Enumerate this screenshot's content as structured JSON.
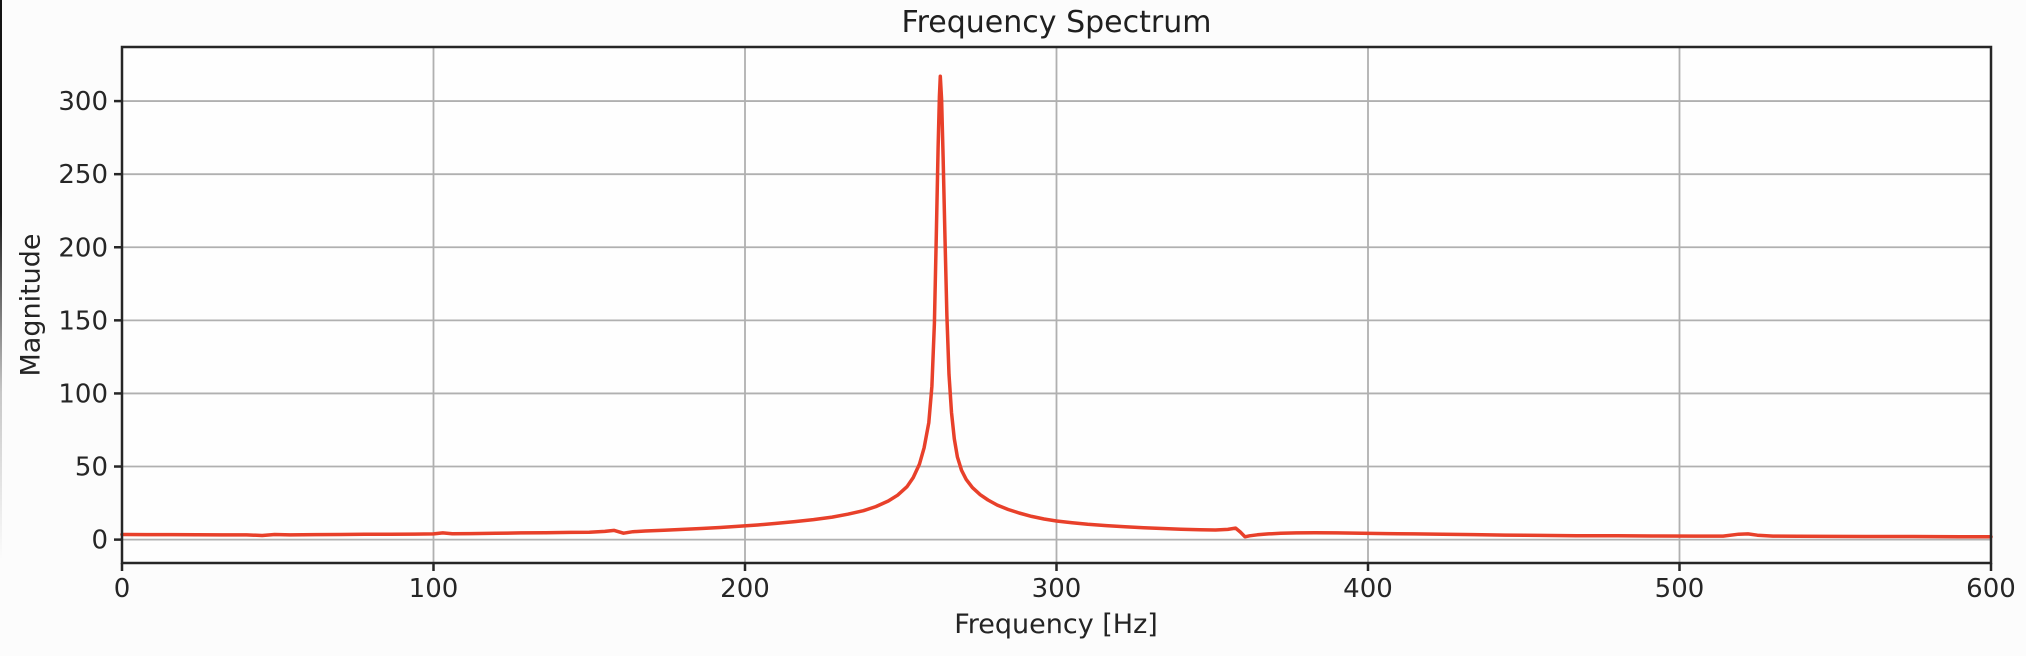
{
  "chart_data": {
    "type": "line",
    "title": "Frequency Spectrum",
    "xlabel": "Frequency [Hz]",
    "ylabel": "Magnitude",
    "xlim": [
      0,
      600
    ],
    "ylim": [
      -16,
      337
    ],
    "x_ticks": [
      0,
      100,
      200,
      300,
      400,
      500,
      600
    ],
    "y_ticks": [
      0,
      50,
      100,
      150,
      200,
      250,
      300
    ],
    "grid": true,
    "legend": false,
    "peak": {
      "frequency_hz": 262.5,
      "magnitude": 317
    },
    "colors": {
      "line": "#e8402a",
      "grid": "#b0b0b0",
      "spine": "#262626",
      "text": "#262626",
      "axes_bg": "#fefefe"
    },
    "series": [
      {
        "name": "magnitude-spectrum",
        "points": [
          [
            0,
            3.5
          ],
          [
            8,
            3.4
          ],
          [
            16,
            3.4
          ],
          [
            24,
            3.3
          ],
          [
            32,
            3.2
          ],
          [
            40,
            3.2
          ],
          [
            45,
            2.8
          ],
          [
            49,
            3.5
          ],
          [
            54,
            3.2
          ],
          [
            62,
            3.4
          ],
          [
            70,
            3.5
          ],
          [
            78,
            3.6
          ],
          [
            86,
            3.7
          ],
          [
            94,
            3.8
          ],
          [
            100,
            3.9
          ],
          [
            103,
            4.6
          ],
          [
            106,
            4.0
          ],
          [
            112,
            4.1
          ],
          [
            120,
            4.3
          ],
          [
            128,
            4.6
          ],
          [
            136,
            4.7
          ],
          [
            144,
            4.9
          ],
          [
            150,
            5.1
          ],
          [
            155,
            5.6
          ],
          [
            158,
            6.3
          ],
          [
            161,
            4.4
          ],
          [
            164,
            5.4
          ],
          [
            168,
            5.9
          ],
          [
            174,
            6.4
          ],
          [
            180,
            7.0
          ],
          [
            186,
            7.6
          ],
          [
            192,
            8.3
          ],
          [
            198,
            9.1
          ],
          [
            204,
            10.0
          ],
          [
            210,
            11.1
          ],
          [
            216,
            12.3
          ],
          [
            222,
            13.7
          ],
          [
            228,
            15.4
          ],
          [
            233,
            17.4
          ],
          [
            238,
            19.8
          ],
          [
            242,
            22.6
          ],
          [
            246,
            26.4
          ],
          [
            249,
            30.4
          ],
          [
            252,
            36.2
          ],
          [
            254,
            42.4
          ],
          [
            256,
            51.5
          ],
          [
            257.5,
            62.8
          ],
          [
            259,
            80
          ],
          [
            260,
            105
          ],
          [
            260.8,
            148
          ],
          [
            261.4,
            208
          ],
          [
            262,
            268
          ],
          [
            262.4,
            303
          ],
          [
            262.7,
            317
          ],
          [
            263.1,
            301
          ],
          [
            263.6,
            262
          ],
          [
            264.2,
            206
          ],
          [
            264.8,
            153
          ],
          [
            265.5,
            113
          ],
          [
            266.3,
            87
          ],
          [
            267.2,
            69
          ],
          [
            268.2,
            56.5
          ],
          [
            269.5,
            47.5
          ],
          [
            271,
            41.2
          ],
          [
            273,
            35.6
          ],
          [
            275.5,
            30.7
          ],
          [
            278,
            27.1
          ],
          [
            281,
            23.6
          ],
          [
            284.5,
            20.6
          ],
          [
            288,
            18.2
          ],
          [
            292,
            15.9
          ],
          [
            296,
            14.1
          ],
          [
            300,
            12.7
          ],
          [
            305,
            11.5
          ],
          [
            310,
            10.5
          ],
          [
            316,
            9.6
          ],
          [
            322,
            8.8
          ],
          [
            328,
            8.1
          ],
          [
            334,
            7.6
          ],
          [
            340,
            7.1
          ],
          [
            346,
            6.8
          ],
          [
            351,
            6.6
          ],
          [
            355,
            7.0
          ],
          [
            357.5,
            7.9
          ],
          [
            359,
            5.2
          ],
          [
            360.5,
            1.9
          ],
          [
            362,
            2.6
          ],
          [
            364.5,
            3.3
          ],
          [
            368,
            3.9
          ],
          [
            372,
            4.3
          ],
          [
            377,
            4.6
          ],
          [
            383,
            4.7
          ],
          [
            390,
            4.6
          ],
          [
            398,
            4.4
          ],
          [
            406,
            4.1
          ],
          [
            415,
            3.9
          ],
          [
            424,
            3.6
          ],
          [
            434,
            3.4
          ],
          [
            444,
            3.1
          ],
          [
            455,
            2.9
          ],
          [
            467,
            2.7
          ],
          [
            480,
            2.6
          ],
          [
            493,
            2.5
          ],
          [
            505,
            2.4
          ],
          [
            514,
            2.4
          ],
          [
            519,
            3.7
          ],
          [
            522,
            3.9
          ],
          [
            525,
            3.0
          ],
          [
            530,
            2.4
          ],
          [
            538,
            2.3
          ],
          [
            548,
            2.2
          ],
          [
            560,
            2.1
          ],
          [
            575,
            2.1
          ],
          [
            590,
            2.0
          ],
          [
            600,
            2.0
          ]
        ]
      }
    ]
  }
}
